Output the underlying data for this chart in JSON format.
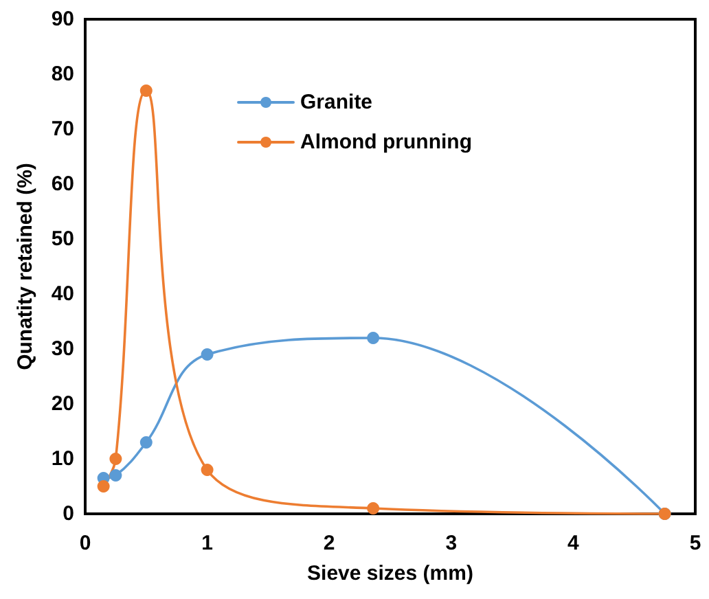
{
  "chart_data": {
    "type": "line",
    "xlabel": "Sieve sizes (mm)",
    "ylabel": "Qunatity retained (%)",
    "x": [
      0.15,
      0.25,
      0.5,
      1,
      2.36,
      4.75
    ],
    "series": [
      {
        "name": "Granite",
        "color": "#5b9bd5",
        "values": [
          6.5,
          7,
          13,
          29,
          32,
          0
        ]
      },
      {
        "name": "Almond prunning",
        "color": "#ed7d31",
        "values": [
          5,
          10,
          77,
          8,
          1,
          0
        ]
      }
    ],
    "xlim": [
      0,
      5
    ],
    "xticks": [
      0,
      1,
      2,
      3,
      4,
      5
    ],
    "ylim": [
      0,
      90
    ],
    "yticks": [
      0,
      10,
      20,
      30,
      40,
      50,
      60,
      70,
      80,
      90
    ],
    "grid": false,
    "legend": "top",
    "marker": "circle",
    "line_style": "solid"
  }
}
